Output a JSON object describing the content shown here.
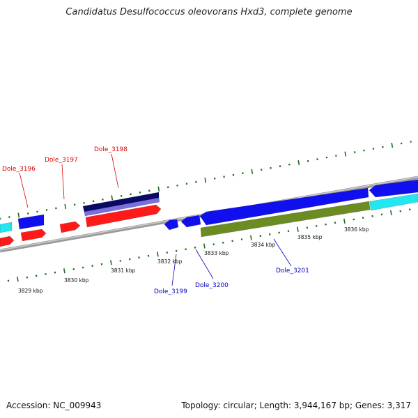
{
  "title": "Candidatus Desulfococcus oleovorans Hxd3, complete genome",
  "footer": {
    "accession": "Accession: NC_009943",
    "stats": "Topology: circular; Length: 3,944,167 bp; Genes: 3,317"
  },
  "colors": {
    "forward_label": "#dd0000",
    "reverse_label": "#0000bb",
    "gene_red": "#ff1a1a",
    "gene_blue": "#1010ee",
    "gene_navy": "#0a0a66",
    "gene_lavender": "#7a6fe0",
    "gene_olive": "#6b8c22",
    "gene_cyan": "#22e6f0",
    "tick_green": "#1e6b1e",
    "backbone": "#888888"
  },
  "forward_labels": [
    "Dole_3196",
    "Dole_3197",
    "Dole_3198"
  ],
  "reverse_labels": [
    "Dole_3199",
    "Dole_3200",
    "Dole_3201"
  ],
  "ruler_labels": [
    "3829 kbp",
    "3830 kbp",
    "3831 kbp",
    "3832 kbp",
    "3833 kbp",
    "3834 kbp",
    "3835 kbp",
    "3836 kbp"
  ]
}
